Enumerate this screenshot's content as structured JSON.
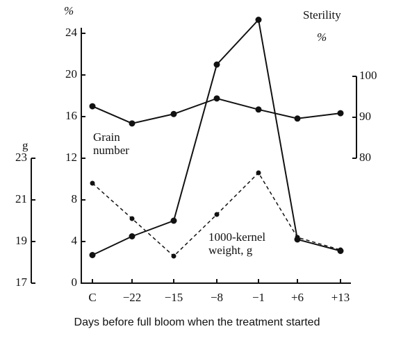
{
  "chart_data": {
    "type": "line",
    "x_label": "Days before full bloom when the treatment started",
    "y_label": "%",
    "y2_label": "%",
    "y3_label": "g",
    "categories": [
      "C",
      "−22",
      "−15",
      "−8",
      "−1",
      "+6",
      "+13"
    ],
    "ylim": [
      0,
      24
    ],
    "yticks": [
      0,
      4,
      8,
      12,
      16,
      20,
      24
    ],
    "y2lim": [
      80,
      100
    ],
    "y2ticks": [
      80,
      90,
      100
    ],
    "y3lim": [
      17,
      23
    ],
    "y3ticks": [
      17,
      19,
      21,
      23
    ],
    "series": [
      {
        "name": "Sterility",
        "color": "#111111",
        "dashed": false,
        "axis": "y",
        "values": [
          2.7,
          4.5,
          6,
          21,
          25.3,
          4.2,
          3.1
        ]
      },
      {
        "name": "Grain number",
        "color": "#111111",
        "dashed": false,
        "axis": "y2",
        "values": [
          92.7,
          88.5,
          90.8,
          94.6,
          91.9,
          89.7,
          91
        ]
      },
      {
        "name": "1000-kernel weight, g",
        "color": "#111111",
        "dashed": true,
        "axis": "y3",
        "values": [
          21.8,
          20.1,
          18.3,
          20.3,
          22.3,
          19.2,
          18.6
        ]
      }
    ]
  }
}
